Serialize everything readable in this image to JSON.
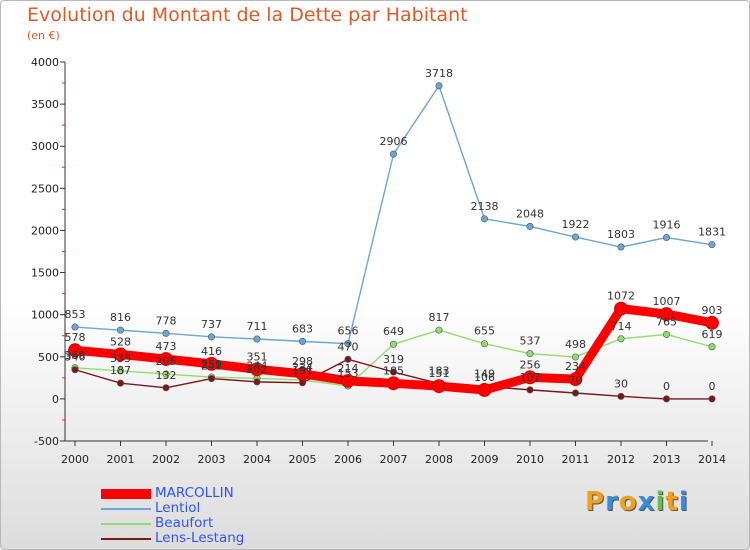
{
  "chart_data": {
    "type": "line",
    "title": "Evolution du Montant de la Dette par Habitant",
    "subtitle": "(en €)",
    "x": [
      "2000",
      "2001",
      "2002",
      "2003",
      "2004",
      "2005",
      "2006",
      "2007",
      "2008",
      "2009",
      "2010",
      "2011",
      "2012",
      "2013",
      "2014"
    ],
    "ylim": [
      -500,
      4000
    ],
    "yticks": [
      -500,
      0,
      500,
      1000,
      1500,
      2000,
      2500,
      3000,
      3500,
      4000
    ],
    "grid": false,
    "legend_position": "bottom-left",
    "series": [
      {
        "name": "MARCOLLIN",
        "color": "#ff0000",
        "values": [
          578,
          528,
          473,
          416,
          351,
          298,
          214,
          185,
          151,
          106,
          256,
          234,
          1072,
          1007,
          903
        ]
      },
      {
        "name": "Lentiol",
        "color": "#6aa6d6",
        "values": [
          853,
          816,
          778,
          737,
          711,
          683,
          656,
          2906,
          3718,
          2138,
          2048,
          1922,
          1803,
          1916,
          1831
        ]
      },
      {
        "name": "Beaufort",
        "color": "#90dc70",
        "values": [
          369,
          333,
          295,
          259,
          244,
          224,
          153,
          649,
          817,
          655,
          537,
          498,
          714,
          765,
          619
        ]
      },
      {
        "name": "Lens-Lestang",
        "color": "#7a1818",
        "values": [
          346,
          187,
          132,
          241,
          202,
          191,
          470,
          319,
          183,
          149,
          107,
          70,
          30,
          0,
          0
        ]
      }
    ]
  },
  "logo": {
    "letters": [
      {
        "ch": "P",
        "color": "#f0a020"
      },
      {
        "ch": "r",
        "color": "#3a8cd8"
      },
      {
        "ch": "o",
        "color": "#f0a020"
      },
      {
        "ch": "x",
        "color": "#3a8cd8"
      },
      {
        "ch": "i",
        "color": "#68c040"
      },
      {
        "ch": "t",
        "color": "#f0a020"
      },
      {
        "ch": "i",
        "color": "#3a8cd8"
      }
    ]
  }
}
